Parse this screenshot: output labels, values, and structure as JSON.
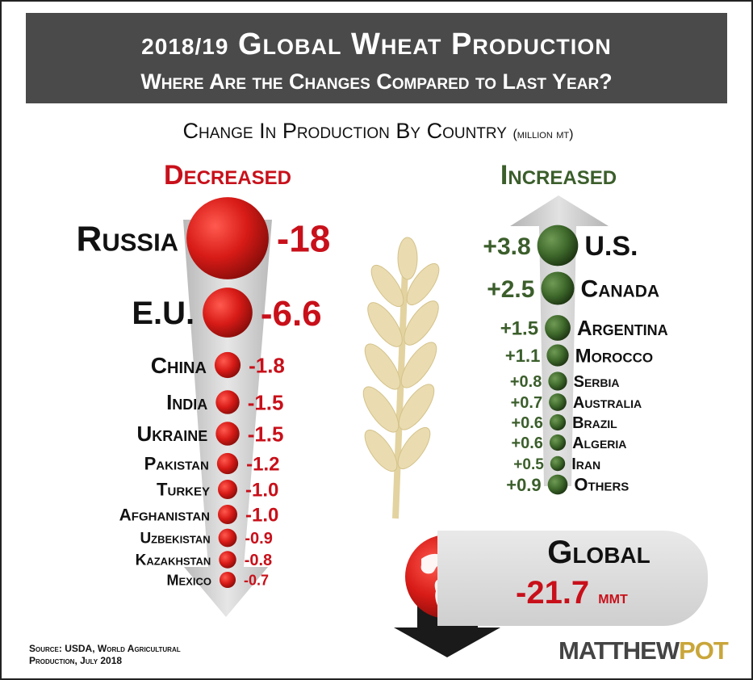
{
  "header": {
    "year": "2018/19",
    "title": "Global Wheat Production",
    "subtitle": "Where Are the Changes Compared to Last Year?"
  },
  "caption": {
    "text": "Change In Production By Country",
    "unit": "(million mt)"
  },
  "groups": {
    "decreased": "Decreased",
    "increased": "Increased"
  },
  "colors": {
    "decrease": "#c8101a",
    "increase": "#3b5e2b",
    "header_bg": "#4a4a4a",
    "arrow": "#c9c9c9",
    "wheat": "#e8d9a8"
  },
  "chart_data": [
    {
      "type": "bubble",
      "title": "Decreased",
      "categories": [
        "Russia",
        "E.U.",
        "China",
        "India",
        "Ukraine",
        "Pakistan",
        "Turkey",
        "Afghanistan",
        "Uzbekistan",
        "Kazakhstan",
        "Mexico"
      ],
      "values": [
        -18,
        -6.6,
        -1.8,
        -1.5,
        -1.5,
        -1.2,
        -1.0,
        -1.0,
        -0.9,
        -0.8,
        -0.7
      ],
      "labels": [
        "-18",
        "-6.6",
        "-1.8",
        "-1.5",
        "-1.5",
        "-1.2",
        "-1.0",
        "-1.0",
        "-0.9",
        "-0.8",
        "-0.7"
      ]
    },
    {
      "type": "bubble",
      "title": "Increased",
      "categories": [
        "U.S.",
        "Canada",
        "Argentina",
        "Morocco",
        "Serbia",
        "Australia",
        "Brazil",
        "Algeria",
        "Iran",
        "Others"
      ],
      "values": [
        3.8,
        2.5,
        1.5,
        1.1,
        0.8,
        0.7,
        0.6,
        0.6,
        0.5,
        0.9
      ],
      "labels": [
        "+3.8",
        "+2.5",
        "+1.5",
        "+1.1",
        "+0.8",
        "+0.7",
        "+0.6",
        "+0.6",
        "+0.5",
        "+0.9"
      ]
    }
  ],
  "global": {
    "label": "Global",
    "value": "-21.7",
    "unit": "MMT"
  },
  "source": {
    "line1": "Source: USDA, World Agricultural",
    "line2": "Production, July 2018"
  },
  "brand": {
    "part1": "MATTHEW",
    "part2": "POT"
  }
}
